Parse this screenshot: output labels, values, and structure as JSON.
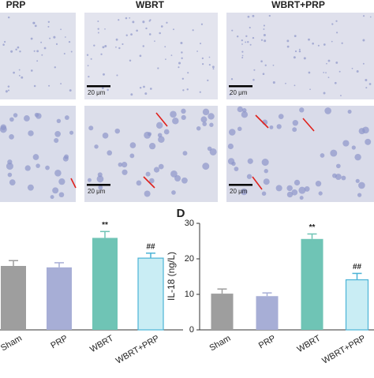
{
  "micrographs": {
    "columns": [
      "PRP",
      "WBRT",
      "WBRT+PRP"
    ],
    "scale_label": "20 μm"
  },
  "chart_data": [
    {
      "type": "bar",
      "categories": [
        "Sham",
        "PRP",
        "WBRT",
        "WBRT+PRP"
      ],
      "values": [
        18.0,
        17.6,
        25.9,
        20.2
      ],
      "errors": [
        1.5,
        1.3,
        1.8,
        1.4
      ],
      "value_annotations": [
        null,
        null,
        "**",
        "##"
      ],
      "colors": [
        "#9e9e9e",
        "#a7aed6",
        "#6fc4b5",
        "#c9edf4"
      ],
      "ylim": [
        0,
        30
      ]
    },
    {
      "type": "bar",
      "panel": "D",
      "y_label": "IL-18 (ng/L)",
      "categories": [
        "Sham",
        "PRP",
        "WBRT",
        "WBRT+PRP"
      ],
      "values": [
        10.2,
        9.5,
        25.6,
        14.1
      ],
      "errors": [
        1.3,
        0.9,
        1.4,
        1.8
      ],
      "value_annotations": [
        null,
        null,
        "**",
        "##"
      ],
      "colors": [
        "#9e9e9e",
        "#a7aed6",
        "#6fc4b5",
        "#c9edf4"
      ],
      "ylim": [
        0,
        30
      ],
      "yticks": [
        0,
        10,
        20,
        30
      ]
    }
  ]
}
